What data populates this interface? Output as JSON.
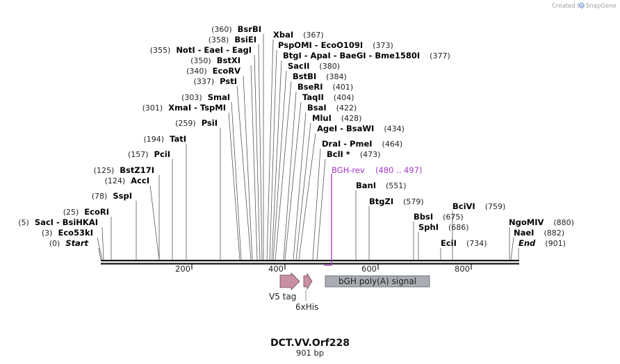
{
  "watermark": {
    "created_by": "Created by",
    "brand": "SnapGene"
  },
  "map": {
    "title": "DCT.VV.Orf228",
    "length_label": "901 bp",
    "ruler_ticks": [
      "200",
      "400",
      "600",
      "800"
    ]
  },
  "sites": [
    {
      "name": "BsrBI",
      "pos": "(360)",
      "bp": 360,
      "label_text": "(360)  BsrBI"
    },
    {
      "name": "BsiEI",
      "pos": "(358)",
      "bp": 358
    },
    {
      "name": "NotI - EaeI - EagI",
      "pos": "(355)",
      "bp": 355
    },
    {
      "name": "BstXI",
      "pos": "(350)",
      "bp": 350
    },
    {
      "name": "EcoRV",
      "pos": "(340)",
      "bp": 340
    },
    {
      "name": "PstI",
      "pos": "(337)",
      "bp": 337
    },
    {
      "name": "SmaI",
      "pos": "(303)",
      "bp": 303
    },
    {
      "name": "XmaI - TspMI",
      "pos": "(301)",
      "bp": 301
    },
    {
      "name": "PsiI",
      "pos": "(259)",
      "bp": 259
    },
    {
      "name": "TatI",
      "pos": "(194)",
      "bp": 194
    },
    {
      "name": "PciI",
      "pos": "(157)",
      "bp": 157
    },
    {
      "name": "BstZ17I",
      "pos": "(125)",
      "bp": 125
    },
    {
      "name": "AccI",
      "pos": "(124)",
      "bp": 124
    },
    {
      "name": "SspI",
      "pos": "(78)",
      "bp": 78
    },
    {
      "name": "EcoRI",
      "pos": "(25)",
      "bp": 25
    },
    {
      "name": "SacI - BsiHKAI",
      "pos": "(5)",
      "bp": 5
    },
    {
      "name": "Eco53kI",
      "pos": "(3)",
      "bp": 3
    },
    {
      "name": "Start",
      "pos": "(0)",
      "bp": 0
    },
    {
      "name": "XbaI",
      "pos": "(367)",
      "bp": 367
    },
    {
      "name": "PspOMI - EcoO109I",
      "pos": "(373)",
      "bp": 373
    },
    {
      "name": "BtgI - ApaI - BaeGI - Bme1580I",
      "pos": "(377)",
      "bp": 377
    },
    {
      "name": "SacII",
      "pos": "(380)",
      "bp": 380
    },
    {
      "name": "BstBI",
      "pos": "(384)",
      "bp": 384
    },
    {
      "name": "BseRI",
      "pos": "(401)",
      "bp": 401
    },
    {
      "name": "TaqII",
      "pos": "(404)",
      "bp": 404
    },
    {
      "name": "BsaI",
      "pos": "(422)",
      "bp": 422
    },
    {
      "name": "MluI",
      "pos": "(428)",
      "bp": 428
    },
    {
      "name": "AgeI - BsaWI",
      "pos": "(434)",
      "bp": 434
    },
    {
      "name": "DraI - PmeI",
      "pos": "(464)",
      "bp": 464
    },
    {
      "name": "BclI *",
      "pos": "(473)",
      "bp": 473
    },
    {
      "name": "BanI",
      "pos": "(551)",
      "bp": 551
    },
    {
      "name": "BtgZI",
      "pos": "(579)",
      "bp": 579
    },
    {
      "name": "BbsI",
      "pos": "(675)",
      "bp": 675
    },
    {
      "name": "SphI",
      "pos": "(686)",
      "bp": 686
    },
    {
      "name": "EciI",
      "pos": "(734)",
      "bp": 734
    },
    {
      "name": "BciVI",
      "pos": "(759)",
      "bp": 759
    },
    {
      "name": "NgoMIV",
      "pos": "(880)",
      "bp": 880
    },
    {
      "name": "NaeI",
      "pos": "(882)",
      "bp": 882
    },
    {
      "name": "End",
      "pos": "(901)",
      "bp": 901
    }
  ],
  "primer": {
    "name": "BGH-rev",
    "range": "(480 .. 497)",
    "color": "#a538c9"
  },
  "features": {
    "v5_tag": {
      "label": "V5 tag",
      "color": "#c98fa3"
    },
    "his_tag": {
      "label": "6xHis",
      "color": "#c98fa3"
    },
    "bgh_polya": {
      "label": "bGH poly(A) signal",
      "color": "#a9adb3"
    }
  }
}
